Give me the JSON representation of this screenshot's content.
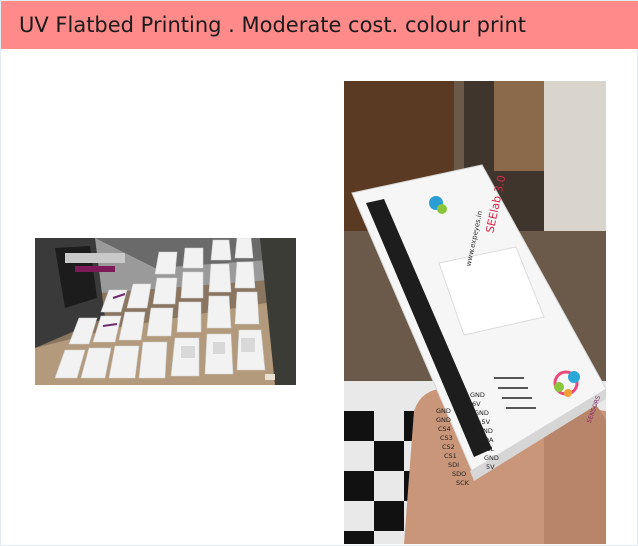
{
  "slide": {
    "title": "UV Flatbed Printing . Moderate cost. colour print"
  },
  "photo_right": {
    "board_name": "SEElab 3.0",
    "brand": "www.expeyes.in",
    "left_pins": [
      "GND",
      "GND",
      "CS4",
      "CS3",
      "CS2",
      "CS1",
      "SDI",
      "SDO",
      "SCK"
    ],
    "right_pins": [
      "GND",
      "6V",
      "GND",
      "+5V",
      "GND",
      "SDA",
      "SCL",
      "GND",
      "5V"
    ],
    "sensors_label": "SENSORS"
  },
  "colors": {
    "title_bar": "#ff8a8a",
    "frame_border": "#e3ecf6"
  }
}
